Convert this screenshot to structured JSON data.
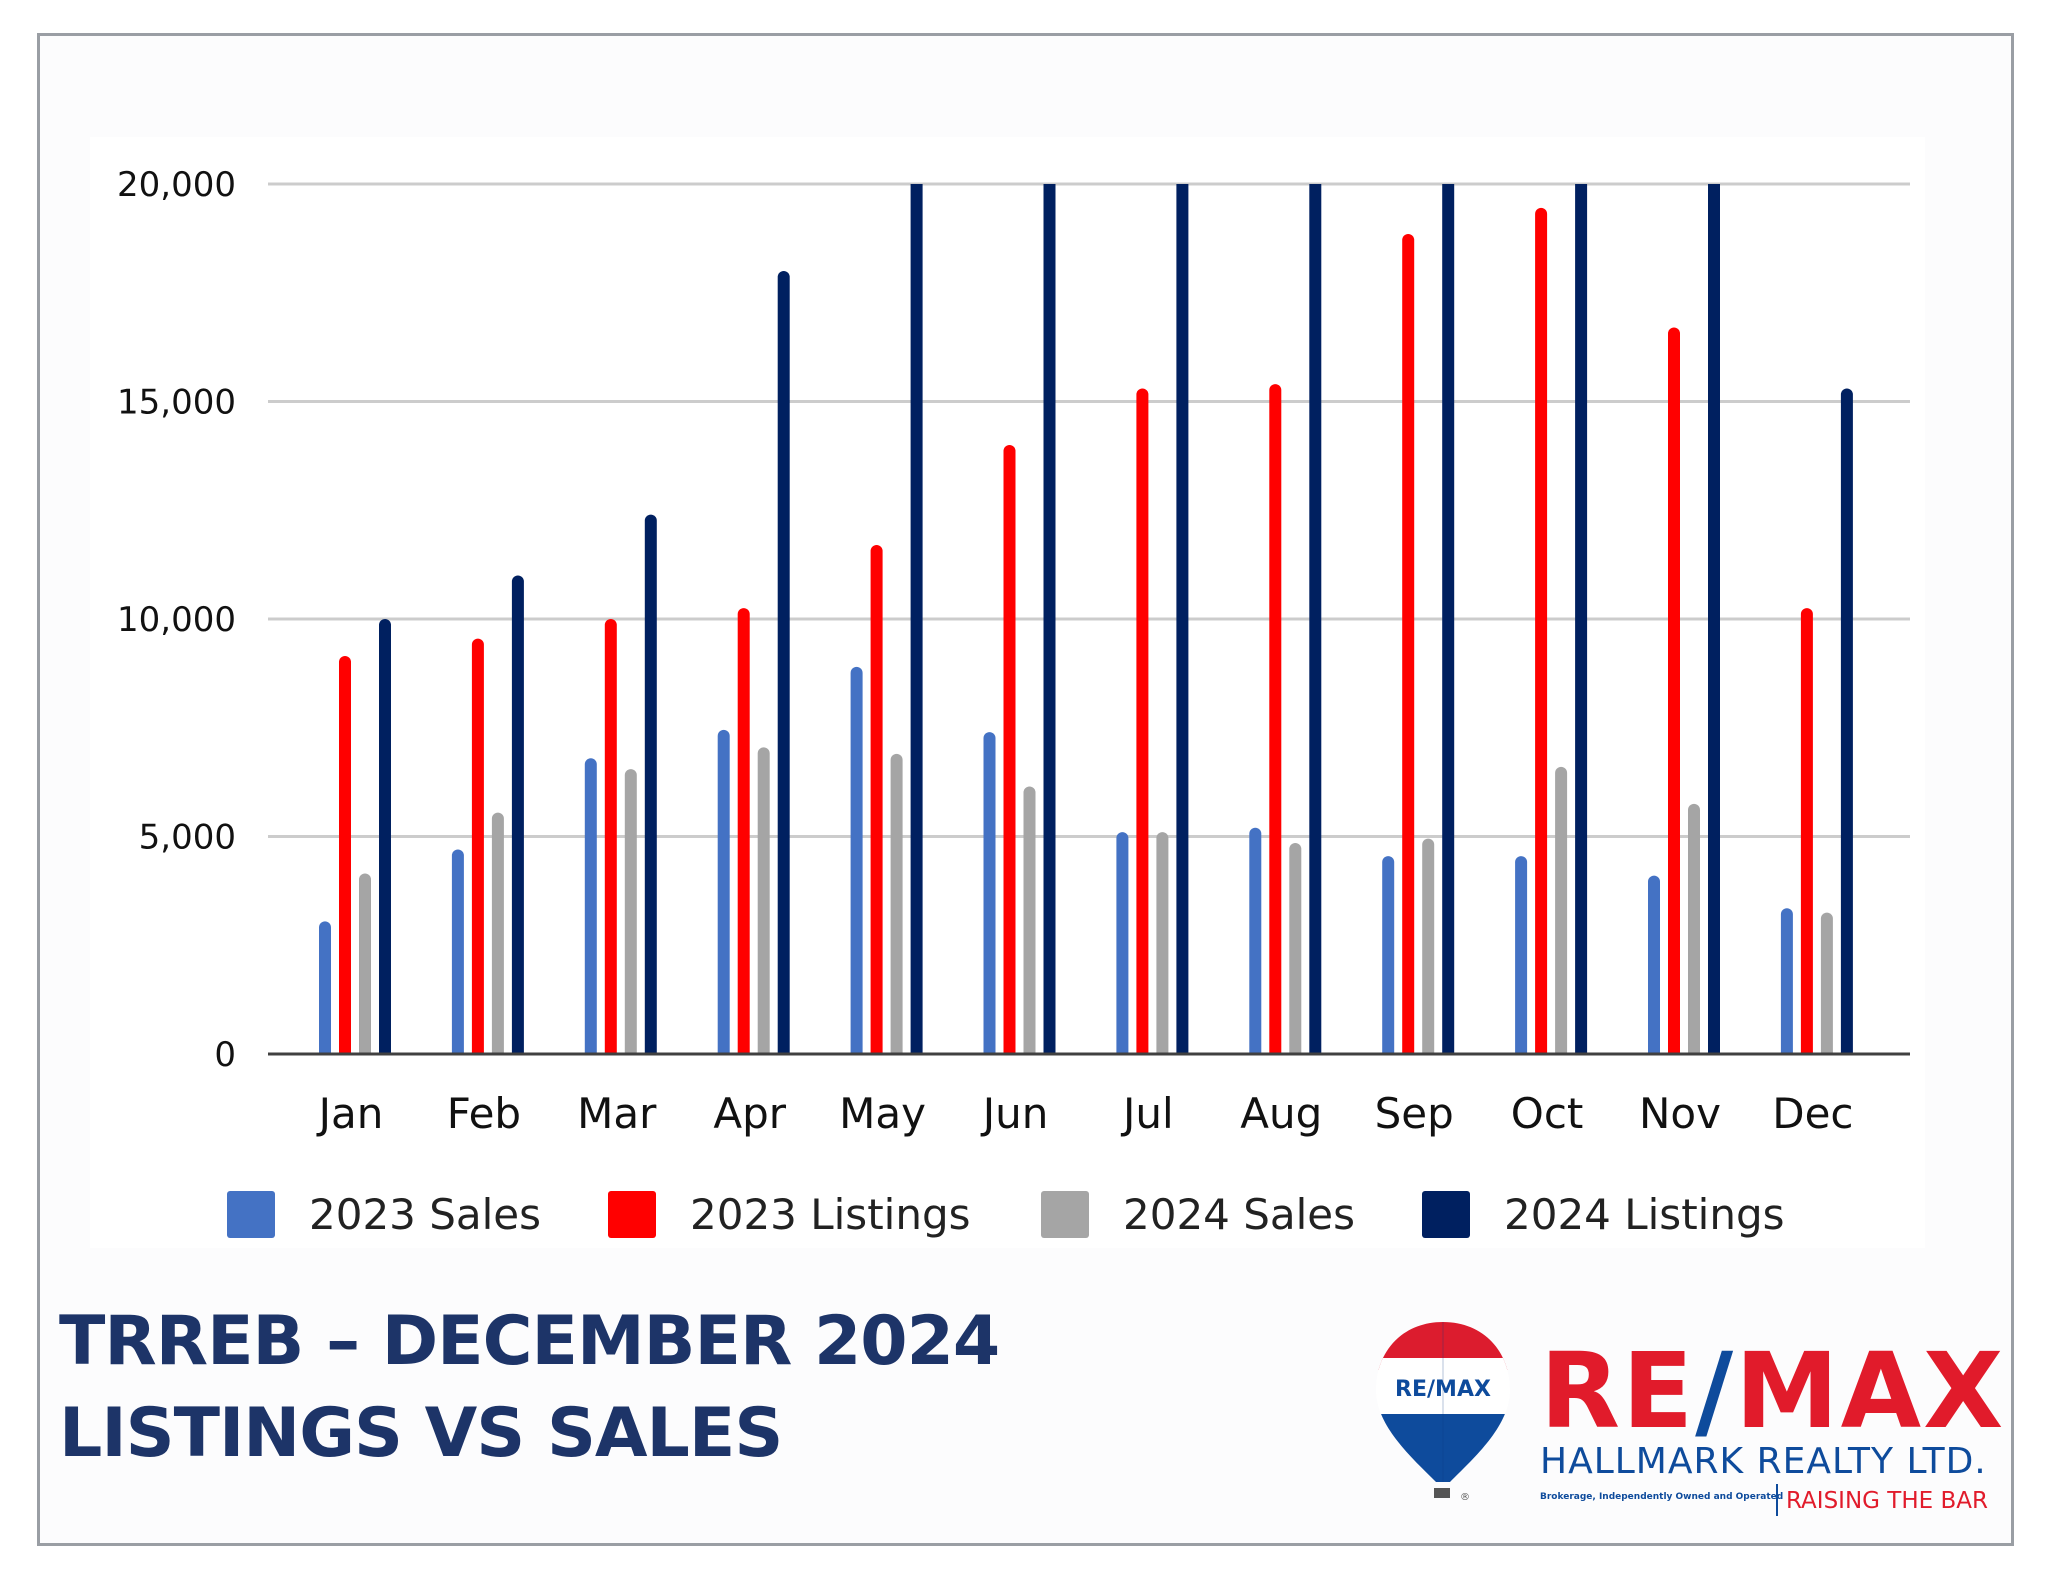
{
  "colors": {
    "frame_border": "#9a9ea4",
    "title": "#1d3468",
    "remax_red": "#e11b2b",
    "remax_blue": "#0e4b9c"
  },
  "title": {
    "line1": "TRREB – DECEMBER 2024",
    "line2": "LISTINGS VS SALES"
  },
  "logo": {
    "balloon_text": "RE/MAX",
    "brand_re": "RE",
    "brand_slash": "/",
    "brand_max": "MAX",
    "company": "HALLMARK REALTY LTD.",
    "brokerage_note": "Brokerage, Independently Owned and Operated",
    "slogan": "RAISING THE BAR",
    "registered_mark": "®"
  },
  "chart_data": {
    "type": "bar",
    "title": "",
    "xlabel": "",
    "ylabel": "",
    "ylim": [
      0,
      20000
    ],
    "yticks": [
      0,
      5000,
      10000,
      15000,
      20000
    ],
    "ytick_labels": [
      "0",
      "5,000",
      "10,000",
      "15,000",
      "20,000"
    ],
    "grid": true,
    "legend_position": "bottom",
    "categories": [
      "Jan",
      "Feb",
      "Mar",
      "Apr",
      "May",
      "Jun",
      "Jul",
      "Aug",
      "Sep",
      "Oct",
      "Nov",
      "Dec"
    ],
    "series": [
      {
        "name": "2023 Sales",
        "color": "#4472c4",
        "values": [
          3050,
          4700,
          6800,
          7450,
          8900,
          7400,
          5100,
          5200,
          4550,
          4550,
          4100,
          3350
        ]
      },
      {
        "name": "2023 Listings",
        "color": "#ff0000",
        "values": [
          9150,
          9550,
          10000,
          10250,
          11700,
          14000,
          15300,
          15400,
          18850,
          19450,
          16700,
          10250
        ]
      },
      {
        "name": "2024 Sales",
        "color": "#a5a5a5",
        "values": [
          4150,
          5550,
          6550,
          7050,
          6900,
          6150,
          5100,
          4850,
          4950,
          6600,
          5750,
          3250
        ]
      },
      {
        "name": "2024 Listings",
        "color": "#002060",
        "values": [
          10000,
          11000,
          12400,
          18000,
          20000,
          20000,
          20000,
          20000,
          20000,
          20000,
          20000,
          15300
        ],
        "note": "May–Nov bars exceed the 20,000 axis maximum and are clipped at the top"
      }
    ]
  }
}
